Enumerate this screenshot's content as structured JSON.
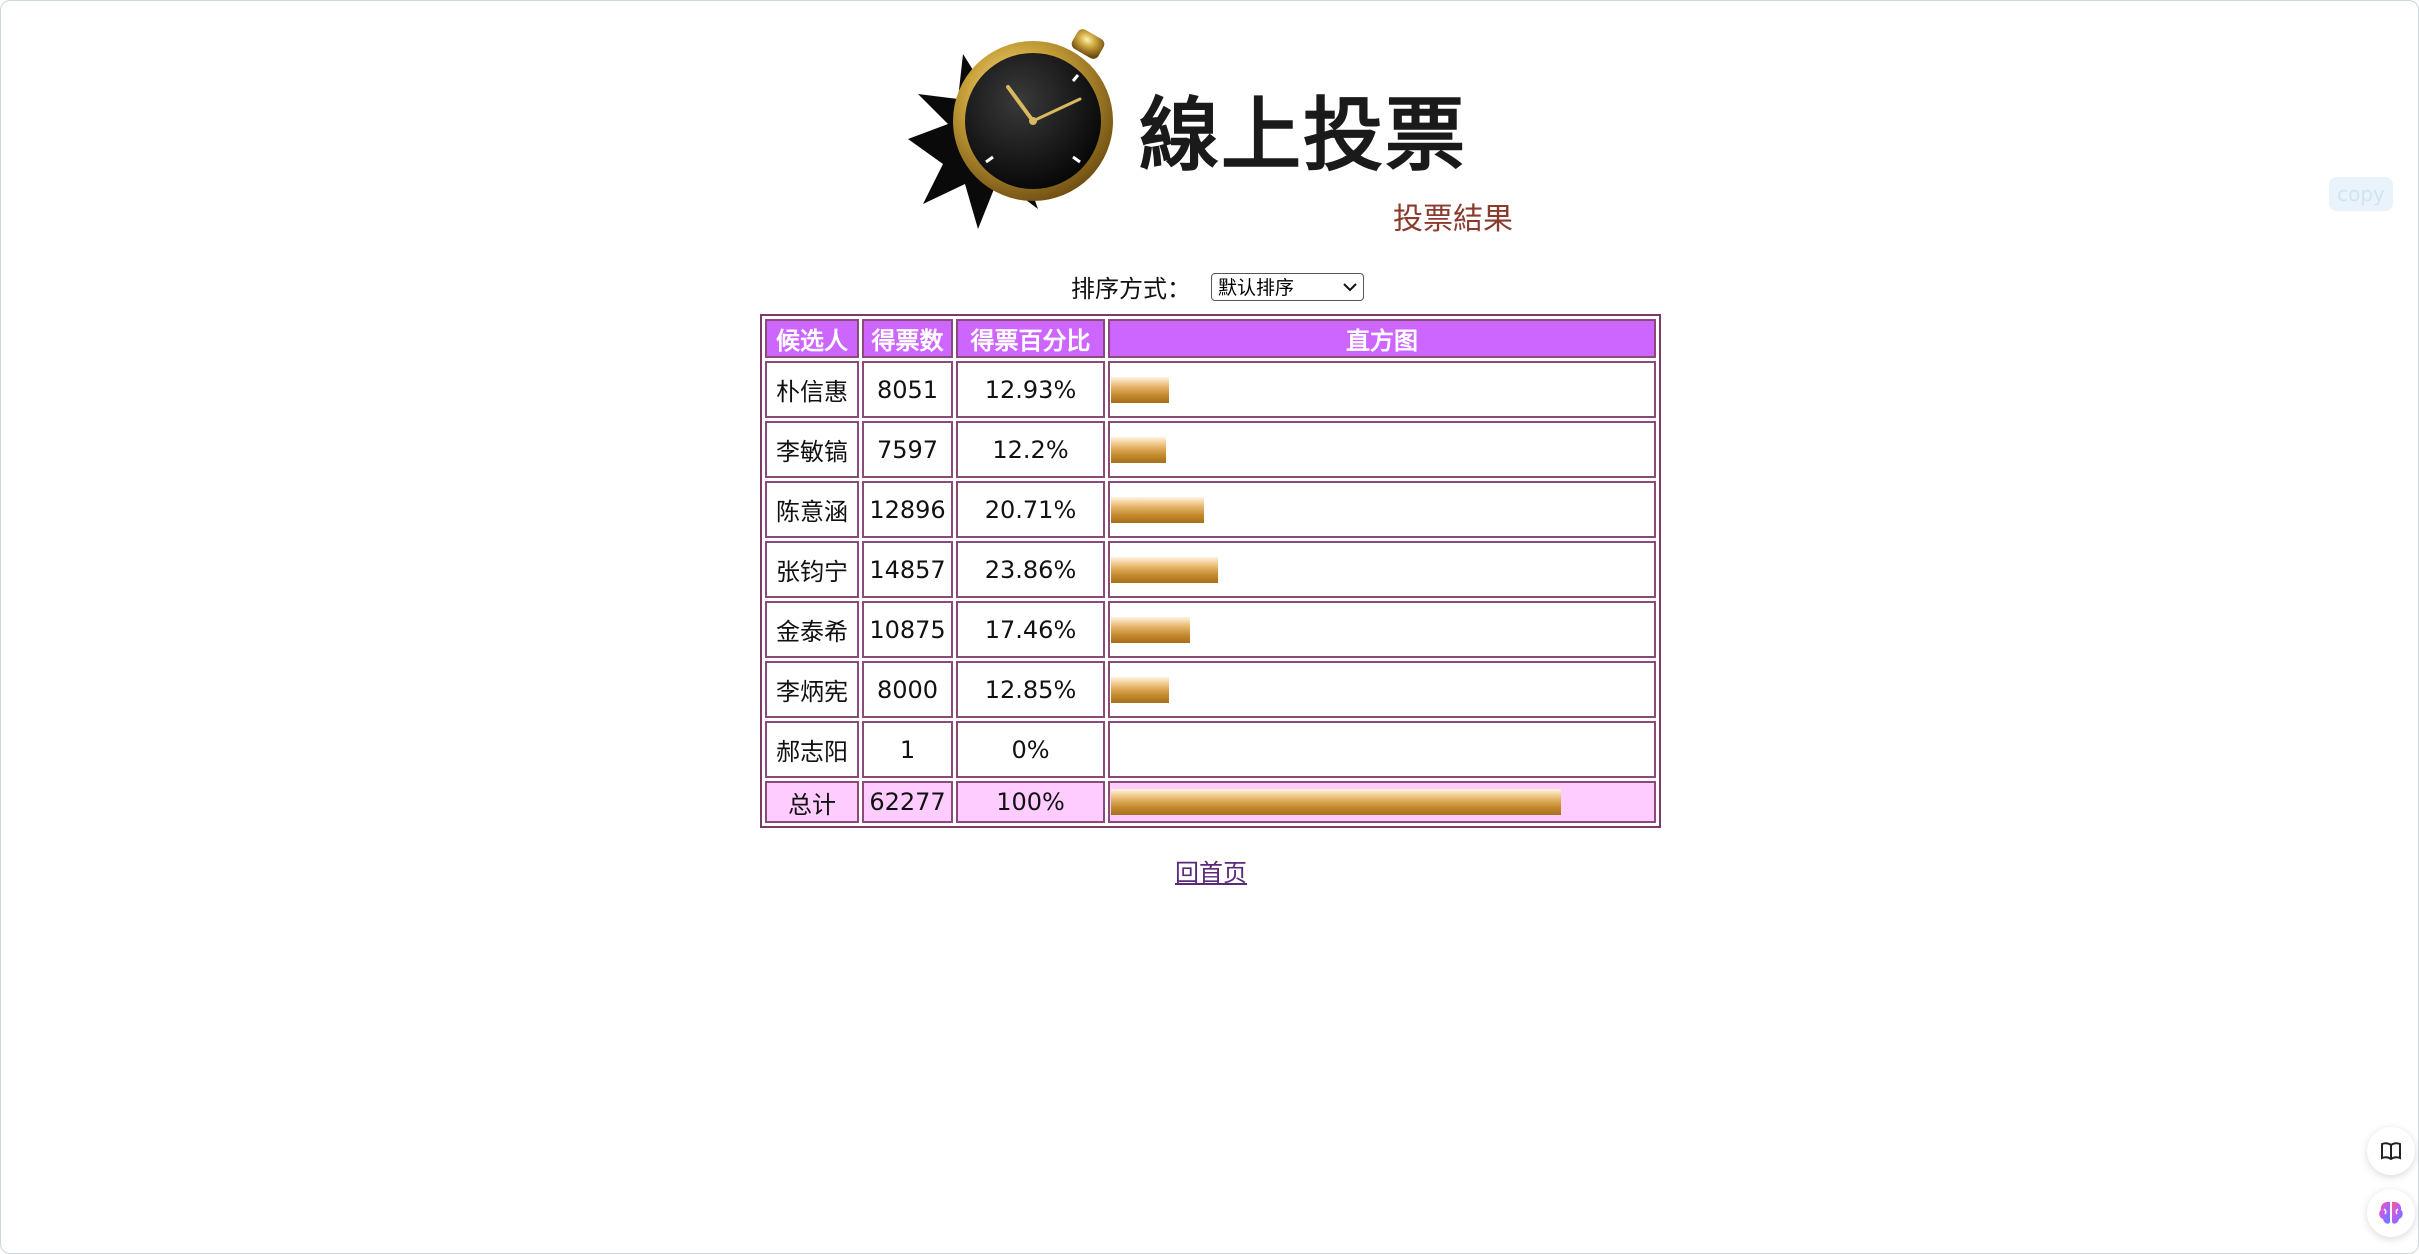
{
  "header": {
    "title": "線上投票",
    "subtitle": "投票結果"
  },
  "sort": {
    "label": "排序方式：",
    "selected": "默认排序"
  },
  "table": {
    "headers": [
      "候选人",
      "得票数",
      "得票百分比",
      "直方图"
    ],
    "rows": [
      {
        "name": "朴信惠",
        "votes": "8051",
        "percent": "12.93%",
        "share": 0.1293
      },
      {
        "name": "李敏镐",
        "votes": "7597",
        "percent": "12.2%",
        "share": 0.122
      },
      {
        "name": "陈意涵",
        "votes": "12896",
        "percent": "20.71%",
        "share": 0.2071
      },
      {
        "name": "张钧宁",
        "votes": "14857",
        "percent": "23.86%",
        "share": 0.2386
      },
      {
        "name": "金泰希",
        "votes": "10875",
        "percent": "17.46%",
        "share": 0.1746
      },
      {
        "name": "李炳宪",
        "votes": "8000",
        "percent": "12.85%",
        "share": 0.1285
      },
      {
        "name": "郝志阳",
        "votes": "1",
        "percent": "0%",
        "share": 0
      }
    ],
    "total": {
      "name": "总计",
      "votes": "62277",
      "percent": "100%",
      "share": 1.0
    }
  },
  "links": {
    "home": "回首页"
  },
  "widgets": {
    "copy": "copy",
    "book_icon": "book-icon",
    "brain_icon": "brain-icon"
  },
  "colors": {
    "header_bg": "#cc66ff",
    "total_bg": "#ffccff",
    "subtitle": "#8b3a2e"
  }
}
